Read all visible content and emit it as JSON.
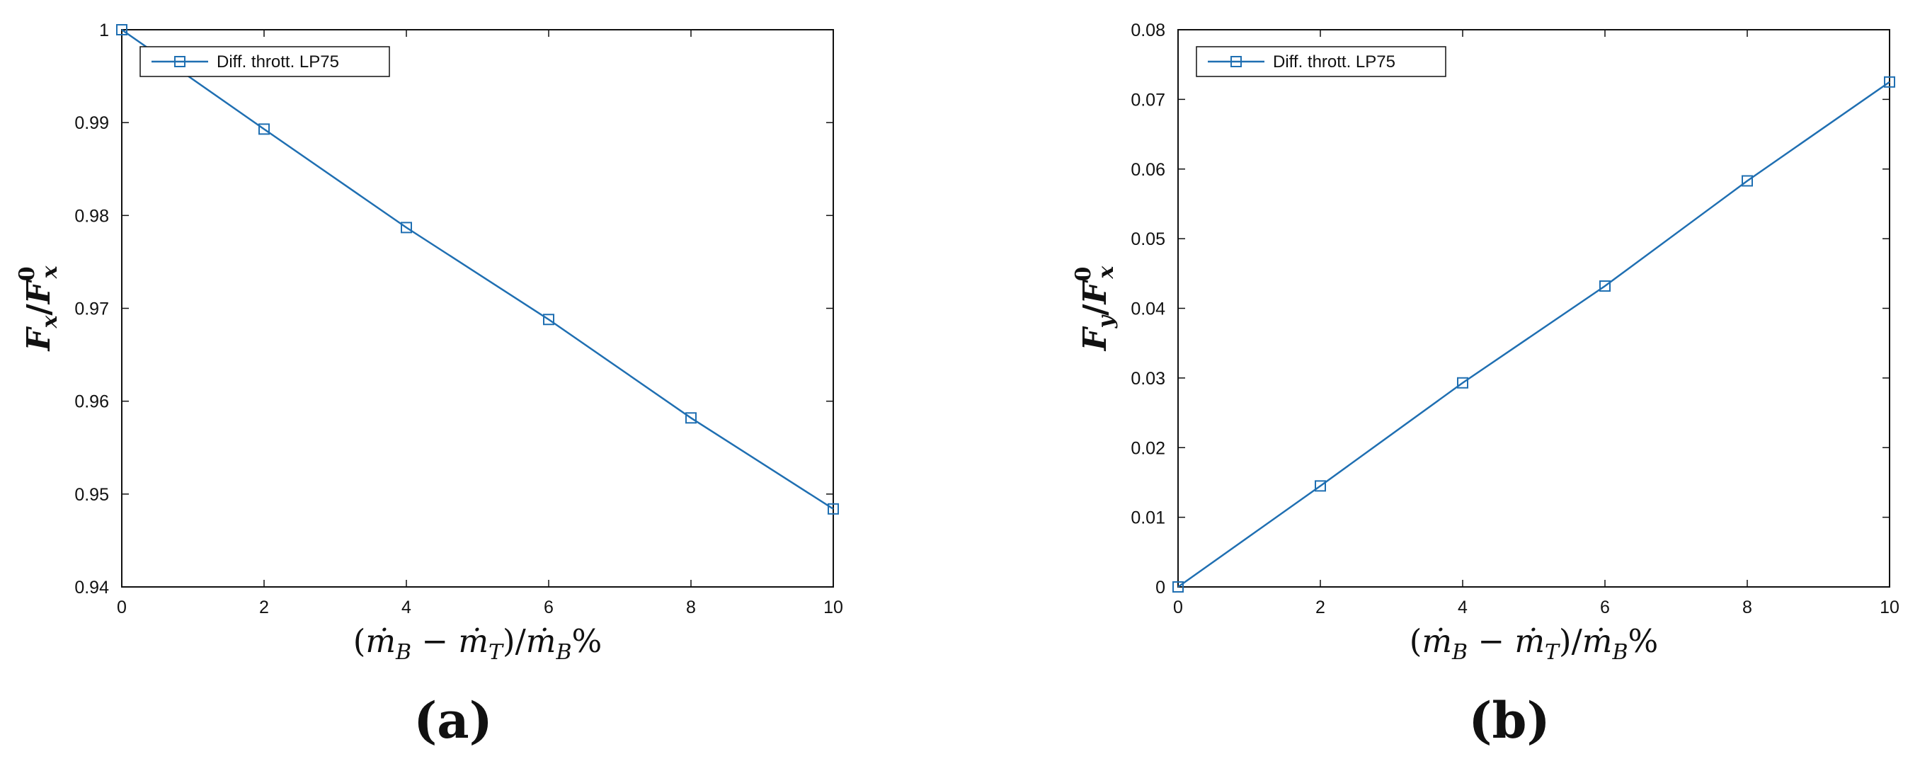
{
  "chart_data": [
    {
      "type": "line",
      "panel_label": "(a)",
      "x": [
        0,
        2,
        4,
        6,
        8,
        10
      ],
      "series": [
        {
          "name": "Diff. thrott. LP75",
          "values": [
            1.0,
            0.9893,
            0.9787,
            0.9688,
            0.9582,
            0.9484
          ]
        }
      ],
      "xlabel": "(ṁ_B − ṁ_T)/ṁ_B%",
      "ylabel": "F_x/F_x^0",
      "xlim": [
        0,
        10
      ],
      "ylim": [
        0.94,
        1.0
      ],
      "xticks": [
        "0",
        "2",
        "4",
        "6",
        "8",
        "10"
      ],
      "yticks": [
        "0.94",
        "0.95",
        "0.96",
        "0.97",
        "0.98",
        "0.99",
        "1"
      ],
      "grid": false,
      "legend": "top-left",
      "color": "#1f6fb2"
    },
    {
      "type": "line",
      "panel_label": "(b)",
      "x": [
        0,
        2,
        4,
        6,
        8,
        10
      ],
      "series": [
        {
          "name": "Diff. thrott. LP75",
          "values": [
            0.0,
            0.0145,
            0.0293,
            0.0432,
            0.0583,
            0.0725
          ]
        }
      ],
      "xlabel": "(ṁ_B − ṁ_T)/ṁ_B%",
      "ylabel": "F_y/F_x^0",
      "xlim": [
        0,
        10
      ],
      "ylim": [
        0,
        0.08
      ],
      "xticks": [
        "0",
        "2",
        "4",
        "6",
        "8",
        "10"
      ],
      "yticks": [
        "0",
        "0.01",
        "0.02",
        "0.03",
        "0.04",
        "0.05",
        "0.06",
        "0.07",
        "0.08"
      ],
      "grid": false,
      "legend": "top-left",
      "color": "#1f6fb2"
    }
  ]
}
